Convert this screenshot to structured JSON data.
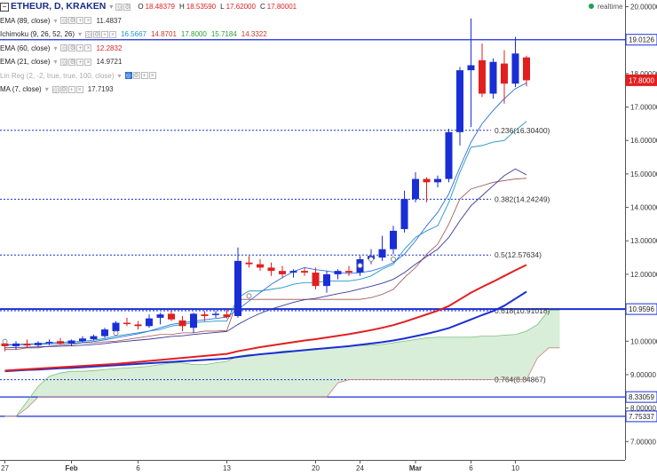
{
  "header": {
    "collapse_icon": "minus-box-icon",
    "symbol": "ETHEUR, D, KRAKEN",
    "ohlc": [
      {
        "label": "O",
        "value": "18.48379"
      },
      {
        "label": "H",
        "value": "18.53590"
      },
      {
        "label": "L",
        "value": "17.62000"
      },
      {
        "label": "C",
        "value": "17.80001"
      }
    ],
    "realtime": "realtime"
  },
  "indicators": [
    {
      "name": "EMA (89, close)",
      "values": [
        {
          "v": "11.4837",
          "color": "#333333"
        }
      ],
      "enabled": true
    },
    {
      "name": "Ichimoku (9, 26, 52, 26)",
      "values": [
        {
          "v": "16.5667",
          "color": "#2196c8"
        },
        {
          "v": "14.8701",
          "color": "#c0392b"
        },
        {
          "v": "17.8000",
          "color": "#2e9c3b"
        },
        {
          "v": "15.7184",
          "color": "#2e9c3b"
        },
        {
          "v": "14.3322",
          "color": "#c0392b"
        }
      ],
      "enabled": true
    },
    {
      "name": "EMA (60, close)",
      "values": [
        {
          "v": "12.2832",
          "color": "#e21f1f"
        }
      ],
      "enabled": true
    },
    {
      "name": "EMA (21, close)",
      "values": [
        {
          "v": "14.9721",
          "color": "#333333"
        }
      ],
      "enabled": true
    },
    {
      "name": "Lin Reg (2, -2, true, true, 100, close)",
      "values": [],
      "enabled": false
    },
    {
      "name": "MA (7, close)",
      "values": [
        {
          "v": "17.7193",
          "color": "#333333"
        }
      ],
      "enabled": true
    }
  ],
  "colors": {
    "up": "#1a2ed6",
    "down": "#e21f1f",
    "ema60": "#e21f1f",
    "ema89": "#1a2ed6",
    "ema21": "#3a3a9a",
    "tenkan": "#2196c8",
    "kijun": "#a05050",
    "cloud": "#d8eed8",
    "cloud_edge": "#7bbf7b",
    "fib": "#1a2ed6"
  },
  "chart_data": {
    "type": "candlestick",
    "y_axis_ticks": [
      "7.00000",
      "8.00000",
      "9.00000",
      "10.00000",
      "11.00000",
      "12.00000",
      "13.00000",
      "14.00000",
      "15.00000",
      "16.00000",
      "17.00000",
      "18.00000",
      "19.00000",
      "20.00000"
    ],
    "ylim": [
      6.45,
      20.2
    ],
    "x_axis_ticks": [
      {
        "label": "27",
        "i": 0
      },
      {
        "label": "Feb",
        "i": 6
      },
      {
        "label": "6",
        "i": 12
      },
      {
        "label": "13",
        "i": 20
      },
      {
        "label": "20",
        "i": 28
      },
      {
        "label": "24",
        "i": 32
      },
      {
        "label": "Mar",
        "i": 37
      },
      {
        "label": "6",
        "i": 42
      },
      {
        "label": "10",
        "i": 46
      }
    ],
    "x_count": 52,
    "price_labels": [
      {
        "value": 19.0126,
        "text": "19.0126",
        "style": "outline"
      },
      {
        "value": 17.8,
        "text": "17.8000",
        "style": "red"
      },
      {
        "value": 10.9596,
        "text": "10.9596",
        "style": "outline"
      },
      {
        "value": 8.33059,
        "text": "8.33059",
        "style": "outline"
      },
      {
        "value": 7.75337,
        "text": "7.75337",
        "style": "outline"
      }
    ],
    "fibonacci": [
      {
        "ratio": "0.236",
        "price": 16.304,
        "label": "0.236(16.30400)"
      },
      {
        "ratio": "0.382",
        "price": 14.24249,
        "label": "0.382(14.24249)"
      },
      {
        "ratio": "0.5",
        "price": 12.57634,
        "label": "0.5(12.57634)"
      },
      {
        "ratio": "0.618",
        "price": 10.91018,
        "label": "0.618(10.91018)"
      },
      {
        "ratio": "0.764",
        "price": 8.84867,
        "label": "0.764(8.84867)"
      }
    ],
    "horizontal_lines": [
      19.0126,
      10.9596,
      8.33059,
      7.75337
    ],
    "candles": [
      [
        0,
        9.93,
        10.0,
        9.7,
        9.85
      ],
      [
        1,
        9.85,
        10.0,
        9.75,
        9.93
      ],
      [
        2,
        9.92,
        10.05,
        9.8,
        9.87
      ],
      [
        3,
        9.88,
        10.0,
        9.82,
        9.95
      ],
      [
        4,
        9.95,
        10.05,
        9.88,
        9.98
      ],
      [
        5,
        10.0,
        10.1,
        9.9,
        9.93
      ],
      [
        6,
        9.93,
        10.05,
        9.86,
        10.02
      ],
      [
        7,
        10.0,
        10.15,
        9.95,
        10.08
      ],
      [
        8,
        10.06,
        10.2,
        10.02,
        10.15
      ],
      [
        9,
        10.15,
        10.4,
        10.1,
        10.35
      ],
      [
        10,
        10.3,
        10.6,
        10.25,
        10.55
      ],
      [
        11,
        10.55,
        10.7,
        10.45,
        10.52
      ],
      [
        12,
        10.5,
        10.6,
        10.35,
        10.45
      ],
      [
        13,
        10.45,
        10.8,
        10.4,
        10.68
      ],
      [
        14,
        10.7,
        10.85,
        10.5,
        10.8
      ],
      [
        15,
        10.82,
        10.9,
        10.6,
        10.65
      ],
      [
        16,
        10.62,
        10.75,
        10.3,
        10.45
      ],
      [
        17,
        10.4,
        10.85,
        10.25,
        10.82
      ],
      [
        18,
        10.8,
        10.9,
        10.6,
        10.75
      ],
      [
        19,
        10.78,
        10.9,
        10.7,
        10.82
      ],
      [
        20,
        10.8,
        10.95,
        10.68,
        10.72
      ],
      [
        21,
        10.75,
        12.8,
        10.7,
        12.4
      ],
      [
        22,
        12.35,
        12.55,
        12.2,
        12.3
      ],
      [
        23,
        12.3,
        12.45,
        12.1,
        12.2
      ],
      [
        24,
        12.2,
        12.35,
        11.95,
        12.1
      ],
      [
        25,
        12.1,
        12.25,
        11.9,
        12.0
      ],
      [
        26,
        12.05,
        12.15,
        11.9,
        12.1
      ],
      [
        27,
        12.1,
        12.2,
        11.95,
        12.05
      ],
      [
        28,
        12.05,
        12.2,
        11.55,
        11.65
      ],
      [
        29,
        11.65,
        12.1,
        11.45,
        12.0
      ],
      [
        30,
        12.0,
        12.15,
        11.85,
        12.1
      ],
      [
        31,
        12.1,
        12.25,
        11.95,
        12.05
      ],
      [
        32,
        12.05,
        12.55,
        11.95,
        12.45
      ],
      [
        33,
        12.45,
        12.75,
        12.3,
        12.55
      ],
      [
        34,
        12.5,
        13.15,
        12.4,
        12.75
      ],
      [
        35,
        12.75,
        13.45,
        12.6,
        13.3
      ],
      [
        36,
        13.35,
        14.5,
        13.25,
        14.25
      ],
      [
        37,
        14.25,
        15.05,
        14.15,
        14.85
      ],
      [
        38,
        14.85,
        14.9,
        14.15,
        14.75
      ],
      [
        39,
        14.75,
        14.95,
        14.6,
        14.85
      ],
      [
        40,
        14.85,
        16.35,
        14.75,
        16.25
      ],
      [
        41,
        16.25,
        18.2,
        15.85,
        18.1
      ],
      [
        42,
        18.1,
        19.65,
        16.4,
        18.25
      ],
      [
        43,
        18.4,
        18.9,
        17.3,
        17.4
      ],
      [
        44,
        17.4,
        18.45,
        17.25,
        18.35
      ],
      [
        45,
        18.3,
        18.7,
        17.1,
        17.7
      ],
      [
        46,
        17.7,
        19.1,
        17.6,
        18.6
      ],
      [
        47,
        18.48379,
        18.5359,
        17.62,
        17.80001
      ]
    ],
    "series": [
      {
        "name": "EMA (60, close)",
        "key": "ema60",
        "x0": 0,
        "values": [
          9.12,
          9.14,
          9.16,
          9.18,
          9.2,
          9.22,
          9.24,
          9.26,
          9.28,
          9.3,
          9.32,
          9.35,
          9.38,
          9.41,
          9.44,
          9.47,
          9.5,
          9.53,
          9.56,
          9.59,
          9.62,
          9.7,
          9.76,
          9.82,
          9.87,
          9.92,
          9.97,
          10.02,
          10.06,
          10.11,
          10.16,
          10.21,
          10.27,
          10.33,
          10.4,
          10.48,
          10.58,
          10.69,
          10.8,
          10.91,
          11.05,
          11.25,
          11.45,
          11.62,
          11.78,
          11.95,
          12.12,
          12.28
        ]
      },
      {
        "name": "EMA (89, close)",
        "key": "ema89",
        "x0": 0,
        "values": [
          9.1,
          9.12,
          9.14,
          9.15,
          9.17,
          9.19,
          9.2,
          9.22,
          9.24,
          9.26,
          9.28,
          9.3,
          9.32,
          9.34,
          9.36,
          9.38,
          9.4,
          9.42,
          9.44,
          9.46,
          9.48,
          9.53,
          9.57,
          9.61,
          9.64,
          9.67,
          9.7,
          9.73,
          9.76,
          9.79,
          9.82,
          9.85,
          9.89,
          9.93,
          9.97,
          10.02,
          10.08,
          10.15,
          10.22,
          10.3,
          10.39,
          10.52,
          10.65,
          10.78,
          10.9,
          11.06,
          11.27,
          11.48
        ]
      },
      {
        "name": "EMA (21, close)",
        "key": "ema21",
        "x0": 0,
        "values": [
          9.8,
          9.81,
          9.82,
          9.83,
          9.84,
          9.85,
          9.86,
          9.88,
          9.9,
          9.93,
          9.97,
          10.0,
          10.03,
          10.06,
          10.1,
          10.14,
          10.16,
          10.2,
          10.23,
          10.26,
          10.29,
          10.5,
          10.68,
          10.83,
          10.96,
          11.06,
          11.16,
          11.24,
          11.28,
          11.35,
          11.42,
          11.48,
          11.56,
          11.64,
          11.73,
          11.85,
          12.05,
          12.3,
          12.53,
          12.75,
          13.1,
          13.6,
          14.05,
          14.35,
          14.65,
          14.95,
          15.15,
          14.97
        ]
      },
      {
        "name": "MA (7, close)",
        "key": "ma7",
        "x0": 0,
        "values": [
          9.88,
          9.89,
          9.9,
          9.91,
          9.92,
          9.93,
          9.94,
          9.96,
          9.99,
          10.04,
          10.1,
          10.16,
          10.22,
          10.3,
          10.4,
          10.5,
          10.55,
          10.6,
          10.64,
          10.68,
          10.72,
          10.95,
          11.2,
          11.45,
          11.7,
          11.9,
          12.08,
          12.2,
          12.14,
          12.1,
          12.05,
          12.02,
          12.05,
          12.1,
          12.2,
          12.35,
          12.6,
          13.0,
          13.45,
          13.85,
          14.4,
          15.2,
          15.95,
          16.5,
          16.9,
          17.25,
          17.55,
          17.72
        ]
      },
      {
        "name": "Tenkan",
        "key": "tenkan",
        "x0": 0,
        "values": [
          9.9,
          9.9,
          9.92,
          9.92,
          9.95,
          9.97,
          9.98,
          10.0,
          10.03,
          10.08,
          10.15,
          10.2,
          10.25,
          10.3,
          10.35,
          10.45,
          10.5,
          10.55,
          10.58,
          10.6,
          10.6,
          11.3,
          11.5,
          11.5,
          11.55,
          11.6,
          11.7,
          11.75,
          11.75,
          11.8,
          11.8,
          11.8,
          11.85,
          11.95,
          12.15,
          12.3,
          12.75,
          13.1,
          13.3,
          13.45,
          14.15,
          15.05,
          15.8,
          15.85,
          15.95,
          16.0,
          16.3,
          16.57
        ]
      },
      {
        "name": "Kijun",
        "key": "kijun",
        "x0": 0,
        "values": [
          9.75,
          9.75,
          9.8,
          9.8,
          9.85,
          9.88,
          9.9,
          9.95,
          9.95,
          9.98,
          10.0,
          10.05,
          10.1,
          10.15,
          10.2,
          10.2,
          10.25,
          10.25,
          10.3,
          10.3,
          10.32,
          11.25,
          11.25,
          11.25,
          11.25,
          11.25,
          11.25,
          11.25,
          11.25,
          11.25,
          11.25,
          11.25,
          11.25,
          11.3,
          11.4,
          11.55,
          11.9,
          12.2,
          12.6,
          12.9,
          13.5,
          14.25,
          14.55,
          14.65,
          14.75,
          14.8,
          14.85,
          14.87
        ]
      },
      {
        "name": "Senkou A",
        "key": "spanA",
        "x0": 0,
        "values": [
          7.75,
          7.75,
          8.2,
          8.65,
          8.95,
          9.05,
          9.1,
          9.1,
          9.12,
          9.15,
          9.18,
          9.2,
          9.22,
          9.25,
          9.3,
          9.35,
          9.35,
          9.3,
          9.3,
          9.35,
          9.4,
          9.55,
          9.6,
          9.6,
          9.65,
          9.7,
          9.72,
          9.75,
          9.78,
          9.8,
          9.82,
          9.85,
          9.87,
          9.88,
          9.9,
          9.95,
          10.0,
          10.05,
          10.1,
          10.12,
          10.12,
          10.12,
          10.12,
          10.15,
          10.15,
          10.18,
          10.2,
          10.3,
          10.5,
          10.92,
          10.92
        ]
      },
      {
        "name": "Senkou B",
        "key": "spanB",
        "x0": 0,
        "values": [
          7.75,
          7.75,
          8.0,
          8.33,
          8.33,
          8.33,
          8.33,
          8.33,
          8.33,
          8.33,
          8.33,
          8.33,
          8.33,
          8.33,
          8.33,
          8.33,
          8.33,
          8.33,
          8.33,
          8.33,
          8.33,
          8.33,
          8.33,
          8.33,
          8.33,
          8.33,
          8.33,
          8.33,
          8.33,
          8.33,
          8.75,
          8.85,
          8.85,
          8.85,
          8.85,
          8.85,
          8.85,
          8.85,
          8.85,
          8.85,
          8.85,
          8.85,
          8.85,
          8.85,
          8.85,
          8.85,
          8.85,
          8.85,
          9.5,
          9.8,
          9.8
        ]
      }
    ],
    "ma_markers": [
      {
        "x": 0,
        "y": 9.99
      },
      {
        "x": 10,
        "y": 10.24
      },
      {
        "x": 22,
        "y": 11.35
      },
      {
        "x": 32,
        "y": 12.26
      },
      {
        "x": 33,
        "y": 12.45
      },
      {
        "x": 35,
        "y": 12.45
      }
    ]
  }
}
